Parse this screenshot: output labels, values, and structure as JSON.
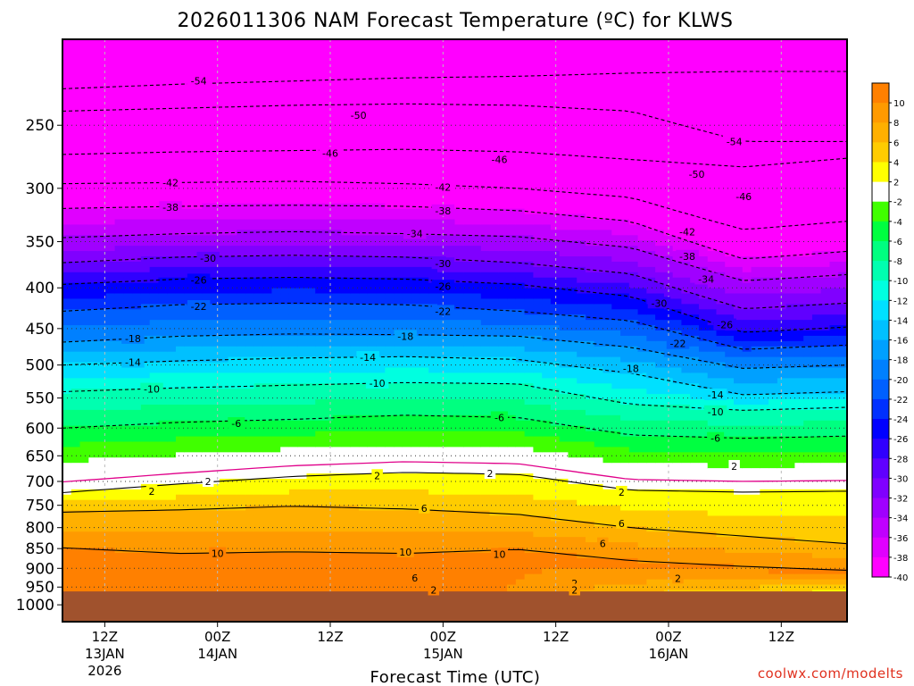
{
  "chart_data": {
    "type": "heatmap",
    "title": "2026011306 NAM Forecast Temperature (ºC) for KLWS",
    "xlabel": "Forecast Time (UTC)",
    "ylabel": "",
    "y_scale": "log",
    "y_reversed": true,
    "ylim": [
      1050,
      195
    ],
    "xlim_hours_from_12Z_13JAN": [
      -4.5,
      79
    ],
    "ytick_labels": [
      "250",
      "300",
      "350",
      "400",
      "450",
      "500",
      "550",
      "600",
      "650",
      "700",
      "750",
      "800",
      "850",
      "900",
      "950",
      "1000"
    ],
    "xticks": [
      {
        "hour": 0,
        "label": "12Z",
        "sub": "13JAN",
        "sub2": "2026"
      },
      {
        "hour": 12,
        "label": "00Z",
        "sub": "14JAN",
        "sub2": ""
      },
      {
        "hour": 24,
        "label": "12Z",
        "sub": "",
        "sub2": ""
      },
      {
        "hour": 36,
        "label": "00Z",
        "sub": "15JAN",
        "sub2": ""
      },
      {
        "hour": 48,
        "label": "12Z",
        "sub": "",
        "sub2": ""
      },
      {
        "hour": 60,
        "label": "00Z",
        "sub": "16JAN",
        "sub2": ""
      },
      {
        "hour": 72,
        "label": "12Z",
        "sub": "",
        "sub2": ""
      }
    ],
    "colorbar": {
      "labels": [
        "10",
        "8",
        "6",
        "4",
        "2",
        "-2",
        "-4",
        "-6",
        "-8",
        "-10",
        "-12",
        "-14",
        "-16",
        "-18",
        "-20",
        "-22",
        "-24",
        "-26",
        "-28",
        "-30",
        "-32",
        "-34",
        "-36",
        "-38",
        "-40"
      ],
      "levels": [
        12,
        10,
        8,
        6,
        4,
        2,
        -2,
        -4,
        -6,
        -8,
        -10,
        -12,
        -14,
        -16,
        -18,
        -20,
        -22,
        -24,
        -26,
        -28,
        -30,
        -32,
        -34,
        -36,
        -38,
        -40,
        -42
      ],
      "colors": [
        "#ff8000",
        "#ff9a00",
        "#ffb000",
        "#ffcc00",
        "#ffff00",
        "#ffffff",
        "#40ff00",
        "#00ff40",
        "#00ff80",
        "#00ffb0",
        "#00ffe0",
        "#00e0ff",
        "#00c0ff",
        "#00a0ff",
        "#0080ff",
        "#0060ff",
        "#0030ff",
        "#0000ff",
        "#3000ff",
        "#6000ff",
        "#8000ff",
        "#a000ff",
        "#c000ff",
        "#e000ff",
        "#ff00ff"
      ]
    },
    "ground_color": "#a0522d",
    "isotherms": [
      {
        "temp": -54,
        "pressures": [
          225,
          222,
          220,
          218,
          217,
          215,
          214,
          214
        ]
      },
      {
        "temp": -50,
        "pressures": [
          240,
          238,
          236,
          235,
          236,
          240,
          262,
          262
        ]
      },
      {
        "temp": -46,
        "pressures": [
          272,
          270,
          269,
          268,
          270,
          276,
          282,
          275
        ]
      },
      {
        "temp": -42,
        "pressures": [
          296,
          295,
          294,
          296,
          300,
          308,
          338,
          330
        ]
      },
      {
        "temp": -38,
        "pressures": [
          318,
          316,
          315,
          316,
          320,
          330,
          368,
          360
        ]
      },
      {
        "temp": -34,
        "pressures": [
          346,
          342,
          340,
          342,
          345,
          356,
          392,
          385
        ]
      },
      {
        "temp": -30,
        "pressures": [
          372,
          366,
          364,
          366,
          372,
          384,
          425,
          418
        ]
      },
      {
        "temp": -26,
        "pressures": [
          396,
          390,
          388,
          390,
          396,
          410,
          455,
          448
        ]
      },
      {
        "temp": -22,
        "pressures": [
          428,
          420,
          418,
          420,
          428,
          440,
          478,
          472
        ]
      },
      {
        "temp": -18,
        "pressures": [
          468,
          460,
          457,
          458,
          460,
          475,
          505,
          500
        ]
      },
      {
        "temp": -14,
        "pressures": [
          500,
          494,
          490,
          488,
          492,
          512,
          545,
          540
        ]
      },
      {
        "temp": -10,
        "pressures": [
          540,
          534,
          530,
          526,
          528,
          560,
          570,
          565
        ]
      },
      {
        "temp": -6,
        "pressures": [
          600,
          590,
          585,
          578,
          582,
          612,
          618,
          614
        ]
      },
      {
        "temp": 2,
        "pressures": [
          723,
          705,
          690,
          682,
          686,
          718,
          722,
          720
        ]
      },
      {
        "temp": 6,
        "pressures": [
          765,
          760,
          752,
          758,
          770,
          800,
          820,
          838
        ]
      },
      {
        "temp": 10,
        "pressures": [
          848,
          862,
          858,
          862,
          852,
          880,
          895,
          905
        ]
      }
    ],
    "isotherm_hours": [
      -4.5,
      8,
      20,
      32,
      44,
      56,
      68,
      79
    ],
    "contour_labels": [
      {
        "text": "-54",
        "hour": 10,
        "p": 220
      },
      {
        "text": "-50",
        "hour": 27,
        "p": 243
      },
      {
        "text": "-46",
        "hour": 24,
        "p": 271
      },
      {
        "text": "-42",
        "hour": 7,
        "p": 295
      },
      {
        "text": "-38",
        "hour": 7,
        "p": 317
      },
      {
        "text": "-34",
        "hour": 33,
        "p": 342
      },
      {
        "text": "-30",
        "hour": 11,
        "p": 367
      },
      {
        "text": "-26",
        "hour": 10,
        "p": 391
      },
      {
        "text": "-22",
        "hour": 10,
        "p": 422
      },
      {
        "text": "-18",
        "hour": 3,
        "p": 463
      },
      {
        "text": "-14",
        "hour": 3,
        "p": 496
      },
      {
        "text": "-10",
        "hour": 5,
        "p": 536
      },
      {
        "text": "-6",
        "hour": 14,
        "p": 592
      },
      {
        "text": "2",
        "hour": 11,
        "p": 700
      },
      {
        "text": "2",
        "hour": 29,
        "p": 688
      },
      {
        "text": "2",
        "hour": 5,
        "p": 720
      },
      {
        "text": "6",
        "hour": 34,
        "p": 756
      },
      {
        "text": "10",
        "hour": 12,
        "p": 862
      },
      {
        "text": "10",
        "hour": 32,
        "p": 858
      },
      {
        "text": "-46",
        "hour": 42,
        "p": 276
      },
      {
        "text": "-42",
        "hour": 36,
        "p": 299
      },
      {
        "text": "-38",
        "hour": 36,
        "p": 320
      },
      {
        "text": "-30",
        "hour": 36,
        "p": 373
      },
      {
        "text": "-26",
        "hour": 36,
        "p": 398
      },
      {
        "text": "-22",
        "hour": 36,
        "p": 428
      },
      {
        "text": "-18",
        "hour": 32,
        "p": 460
      },
      {
        "text": "-14",
        "hour": 28,
        "p": 489
      },
      {
        "text": "-10",
        "hour": 29,
        "p": 527
      },
      {
        "text": "-6",
        "hour": 42,
        "p": 582
      },
      {
        "text": "2",
        "hour": 41,
        "p": 684
      },
      {
        "text": "-54",
        "hour": 67,
        "p": 262
      },
      {
        "text": "-50",
        "hour": 63,
        "p": 288
      },
      {
        "text": "-46",
        "hour": 68,
        "p": 307
      },
      {
        "text": "-42",
        "hour": 62,
        "p": 340
      },
      {
        "text": "-38",
        "hour": 62,
        "p": 365
      },
      {
        "text": "-34",
        "hour": 64,
        "p": 390
      },
      {
        "text": "-30",
        "hour": 59,
        "p": 418
      },
      {
        "text": "-26",
        "hour": 66,
        "p": 445
      },
      {
        "text": "-22",
        "hour": 61,
        "p": 470
      },
      {
        "text": "-18",
        "hour": 56,
        "p": 505
      },
      {
        "text": "-14",
        "hour": 65,
        "p": 545
      },
      {
        "text": "-10",
        "hour": 65,
        "p": 572
      },
      {
        "text": "-6",
        "hour": 65,
        "p": 618
      },
      {
        "text": "2",
        "hour": 67,
        "p": 670
      },
      {
        "text": "2",
        "hour": 55,
        "p": 722
      },
      {
        "text": "6",
        "hour": 55,
        "p": 790
      },
      {
        "text": "6",
        "hour": 53,
        "p": 838
      },
      {
        "text": "10",
        "hour": 42,
        "p": 864
      },
      {
        "text": "6",
        "hour": 33,
        "p": 925
      },
      {
        "text": "2",
        "hour": 35,
        "p": 958
      },
      {
        "text": "2",
        "hour": 50,
        "p": 940
      },
      {
        "text": "2",
        "hour": 50,
        "p": 958
      },
      {
        "text": "2",
        "hour": 61,
        "p": 926
      }
    ]
  },
  "credit": "coolwx.com/modelts"
}
